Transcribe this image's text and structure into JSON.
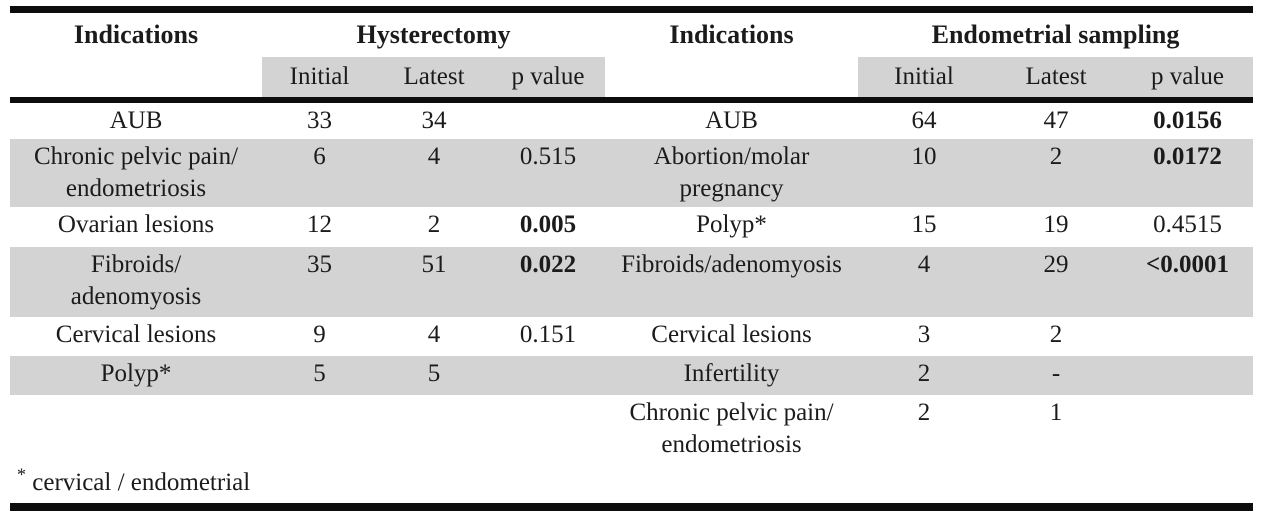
{
  "colors": {
    "row_shade": "#d3d3d3",
    "border": "#0d0d0d",
    "text": "#1b1b1b"
  },
  "table": {
    "left": {
      "indications_header": "Indications",
      "group_header": "Hysterectomy",
      "columns": {
        "initial": "Initial",
        "latest": "Latest",
        "p": "p value"
      },
      "rows": [
        {
          "label": "AUB",
          "initial": "33",
          "latest": "34",
          "p": ""
        },
        {
          "label": "Chronic pelvic pain/\nendometriosis",
          "initial": "6",
          "latest": "4",
          "p": "0.515"
        },
        {
          "label": "Ovarian lesions",
          "initial": "12",
          "latest": "2",
          "p": "0.005"
        },
        {
          "label": "Fibroids/\nadenomyosis",
          "initial": "35",
          "latest": "51",
          "p": "0.022"
        },
        {
          "label": "Cervical lesions",
          "initial": "9",
          "latest": "4",
          "p": "0.151"
        },
        {
          "label": "Polyp*",
          "initial": "5",
          "latest": "5",
          "p": ""
        }
      ]
    },
    "right": {
      "indications_header": "Indications",
      "group_header": "Endometrial sampling",
      "columns": {
        "initial": "Initial",
        "latest": "Latest",
        "p": "p value"
      },
      "rows": [
        {
          "label": "AUB",
          "initial": "64",
          "latest": "47",
          "p": "0.0156"
        },
        {
          "label": "Abortion/molar\npregnancy",
          "initial": "10",
          "latest": "2",
          "p": "0.0172"
        },
        {
          "label": "Polyp*",
          "initial": "15",
          "latest": "19",
          "p": "0.4515"
        },
        {
          "label": "Fibroids/adenomyosis",
          "initial": "4",
          "latest": "29",
          "p": "<0.0001"
        },
        {
          "label": "Cervical lesions",
          "initial": "3",
          "latest": "2",
          "p": ""
        },
        {
          "label": "Infertility",
          "initial": "2",
          "latest": "-",
          "p": ""
        },
        {
          "label": "Chronic pelvic pain/\nendometriosis",
          "initial": "2",
          "latest": "1",
          "p": ""
        }
      ]
    },
    "footnote_marker": "*",
    "footnote_text": "cervical / endometrial"
  }
}
